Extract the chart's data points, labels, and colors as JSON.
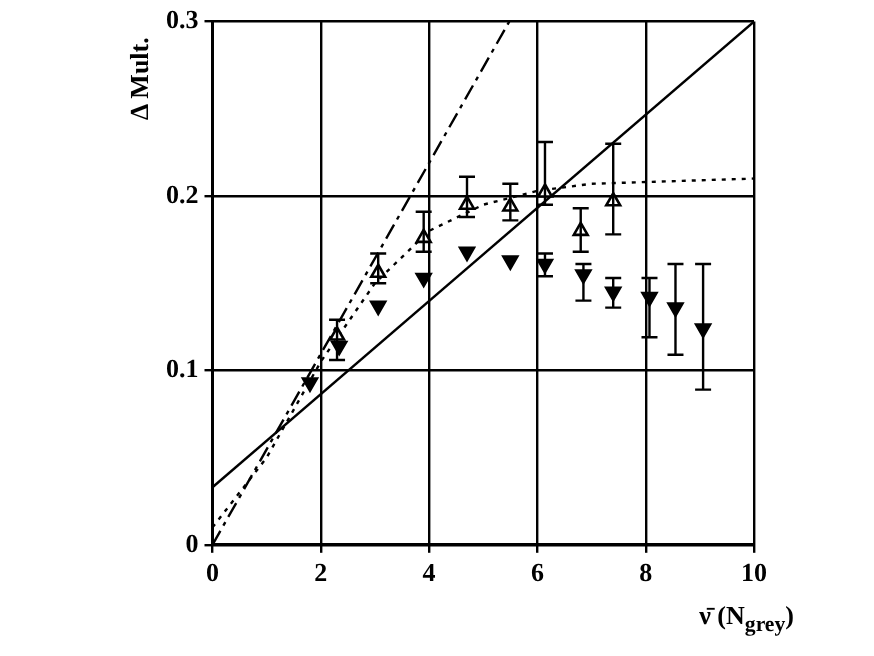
{
  "chart_data": {
    "type": "scatter",
    "xlabel": "ν̄ (N$_{grey}$)",
    "ylabel": "Δ Mult.",
    "xlim": [
      0,
      10
    ],
    "ylim": [
      0,
      0.3
    ],
    "xticks": [
      0,
      2,
      4,
      6,
      8,
      10
    ],
    "yticks": [
      0,
      0.1,
      0.2,
      0.3
    ],
    "grid": true,
    "legend": false,
    "marker": "triangle",
    "series": [
      {
        "color": "#000000",
        "x": [
          2.3,
          3.06,
          3.9,
          4.7,
          5.5,
          6.14,
          6.8,
          7.4
        ],
        "values": [
          0.12,
          0.156,
          0.176,
          0.195,
          0.194,
          0.202,
          0.18,
          0.197
        ],
        "errors": [
          [
            0.106,
            0.129
          ],
          [
            0.15,
            0.167
          ],
          [
            0.168,
            0.191
          ],
          [
            0.188,
            0.211
          ],
          [
            0.186,
            0.207
          ],
          [
            0.195,
            0.231
          ],
          [
            0.168,
            0.193
          ],
          [
            0.178,
            0.23
          ]
        ]
      },
      {
        "color": "#000000",
        "x": [
          1.8,
          2.34,
          3.06,
          3.9,
          4.7,
          5.5,
          6.14,
          6.85,
          7.4,
          8.07,
          8.55,
          9.06
        ],
        "values": [
          0.093,
          0.114,
          0.137,
          0.153,
          0.168,
          0.163,
          0.161,
          0.155,
          0.145,
          0.142,
          0.136,
          0.124
        ],
        "errors": [
          null,
          null,
          null,
          null,
          null,
          null,
          [
            0.154,
            0.167
          ],
          [
            0.14,
            0.161
          ],
          [
            0.136,
            0.153
          ],
          [
            0.119,
            0.153
          ],
          [
            0.109,
            0.161
          ],
          [
            0.089,
            0.161
          ]
        ]
      },
      {
        "type": "line",
        "marker": "none",
        "line_style": "dashed",
        "color": "#000000",
        "x": [
          0,
          5.48
        ],
        "values": [
          0,
          0.3
        ]
      },
      {
        "type": "line",
        "marker": "none",
        "line_style": "solid",
        "color": "#000000",
        "x": [
          0,
          10
        ],
        "values": [
          0.033,
          0.3
        ]
      },
      {
        "type": "line",
        "marker": "none",
        "line_style": "dotted",
        "color": "#000000",
        "x": [
          0,
          0.5,
          1,
          2,
          3,
          4,
          5,
          6,
          7,
          8,
          10
        ],
        "values": [
          0.01,
          0.03,
          0.05,
          0.105,
          0.15,
          0.18,
          0.195,
          0.203,
          0.207,
          0.208,
          0.21
        ]
      }
    ]
  }
}
